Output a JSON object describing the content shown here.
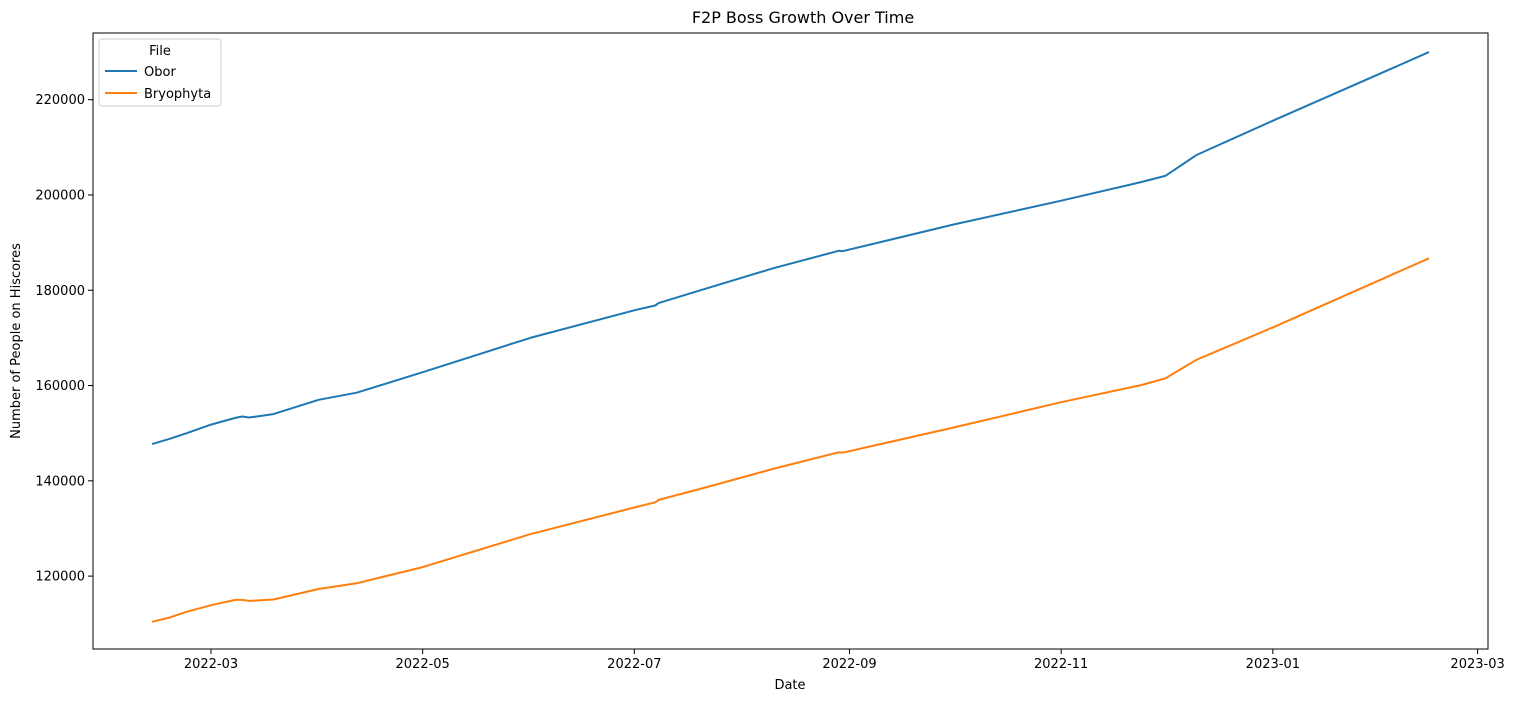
{
  "chart_data": {
    "type": "line",
    "title": "F2P Boss Growth Over Time",
    "xlabel": "Date",
    "ylabel": "Number of People on Hiscores",
    "x_axis_type": "date",
    "xlim": [
      "2022-01-26",
      "2023-03-04"
    ],
    "ylim": [
      104700,
      234000
    ],
    "x_ticks": [
      "2022-03-01",
      "2022-05-01",
      "2022-07-01",
      "2022-09-01",
      "2022-11-01",
      "2023-01-01",
      "2023-03-01"
    ],
    "x_tick_labels": [
      "2022-03",
      "2022-05",
      "2022-07",
      "2022-09",
      "2022-11",
      "2023-01",
      "2023-03"
    ],
    "y_ticks": [
      120000,
      140000,
      160000,
      180000,
      200000,
      220000
    ],
    "y_tick_labels": [
      "120000",
      "140000",
      "160000",
      "180000",
      "200000",
      "220000"
    ],
    "grid": false,
    "legend": {
      "title": "File",
      "placement": "top-left"
    },
    "colors": {
      "Obor": "#1f77b4",
      "Bryophyta": "#ff7f0e"
    },
    "series": [
      {
        "name": "Obor",
        "x": [
          "2022-02-12",
          "2022-02-17",
          "2022-02-22",
          "2022-03-01",
          "2022-03-08",
          "2022-03-10",
          "2022-03-12",
          "2022-03-19",
          "2022-04-01",
          "2022-04-12",
          "2022-05-01",
          "2022-06-01",
          "2022-07-01",
          "2022-07-07",
          "2022-07-08",
          "2022-07-20",
          "2022-08-10",
          "2022-08-29",
          "2022-08-30",
          "2022-10-01",
          "2022-11-01",
          "2022-11-24",
          "2022-12-01",
          "2022-12-10",
          "2023-01-01",
          "2023-02-15"
        ],
        "values": [
          147700,
          148800,
          150000,
          151800,
          153200,
          153500,
          153300,
          154000,
          157000,
          158500,
          162800,
          170000,
          175800,
          176800,
          177300,
          180000,
          184600,
          188300,
          188200,
          193800,
          198800,
          202700,
          204000,
          208400,
          215600,
          230000
        ]
      },
      {
        "name": "Bryophyta",
        "x": [
          "2022-02-12",
          "2022-02-17",
          "2022-02-22",
          "2022-03-01",
          "2022-03-08",
          "2022-03-10",
          "2022-03-12",
          "2022-03-19",
          "2022-04-01",
          "2022-04-12",
          "2022-05-01",
          "2022-06-01",
          "2022-07-01",
          "2022-07-07",
          "2022-07-08",
          "2022-07-20",
          "2022-08-10",
          "2022-08-29",
          "2022-08-30",
          "2022-10-01",
          "2022-11-01",
          "2022-11-24",
          "2022-12-01",
          "2022-12-10",
          "2023-01-01",
          "2023-02-15"
        ],
        "values": [
          110400,
          111300,
          112500,
          113900,
          115000,
          115000,
          114800,
          115100,
          117300,
          118500,
          121900,
          128800,
          134400,
          135500,
          136000,
          138300,
          142500,
          146000,
          145900,
          151200,
          156500,
          160100,
          161500,
          165400,
          172200,
          186700
        ]
      }
    ]
  }
}
